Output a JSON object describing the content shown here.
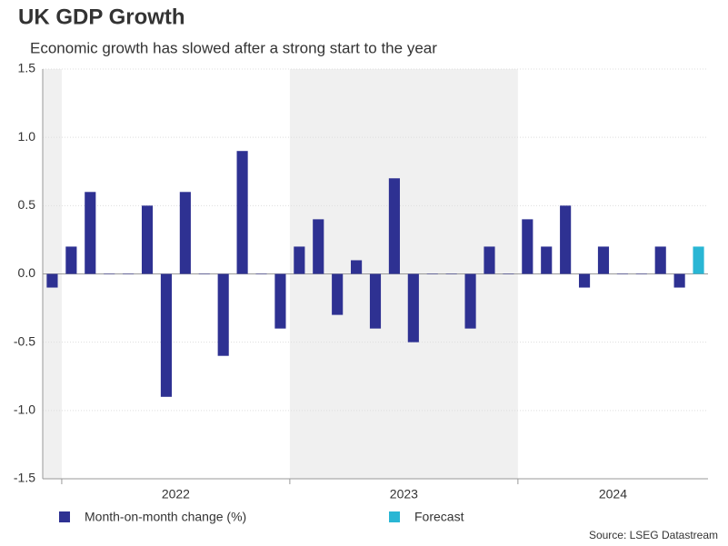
{
  "chart_data": {
    "type": "bar",
    "title": "UK GDP Growth",
    "subtitle": "Economic growth has slowed after a strong start to the year",
    "source": "Source: LSEG Datastream",
    "categories": [
      null,
      "2022",
      null,
      null,
      null,
      null,
      null,
      null,
      null,
      null,
      null,
      null,
      null,
      "2023",
      null,
      null,
      null,
      null,
      null,
      null,
      null,
      null,
      null,
      null,
      null,
      "2024",
      null,
      null,
      null,
      null,
      null,
      null,
      null,
      null,
      null
    ],
    "series": [
      {
        "name": "Month-on-month change (%)",
        "color": "#2e3192",
        "values": [
          -0.1,
          0.2,
          0.6,
          0.0,
          0.0,
          0.5,
          -0.9,
          0.6,
          0.0,
          -0.6,
          0.9,
          0.0,
          -0.4,
          0.2,
          0.4,
          -0.3,
          0.1,
          -0.4,
          0.7,
          -0.5,
          0.0,
          0.0,
          -0.4,
          0.2,
          0.0,
          0.4,
          0.2,
          0.5,
          -0.1,
          0.2,
          0.0,
          0.0,
          0.2,
          -0.1,
          null
        ]
      },
      {
        "name": "Forecast",
        "color": "#29b6d4",
        "values": [
          null,
          null,
          null,
          null,
          null,
          null,
          null,
          null,
          null,
          null,
          null,
          null,
          null,
          null,
          null,
          null,
          null,
          null,
          null,
          null,
          null,
          null,
          null,
          null,
          null,
          null,
          null,
          null,
          null,
          null,
          null,
          null,
          null,
          null,
          0.2
        ]
      }
    ],
    "ylim": [
      -1.5,
      1.5
    ],
    "yticks": [
      -1.5,
      {
        "value": -1,
        "label": "-1.0"
      },
      -0.5,
      {
        "value": 0,
        "label": "0.0"
      },
      0.5,
      {
        "value": 1,
        "label": "1.0"
      },
      1.5
    ],
    "grid": true,
    "shading": "#f0f0f0"
  }
}
